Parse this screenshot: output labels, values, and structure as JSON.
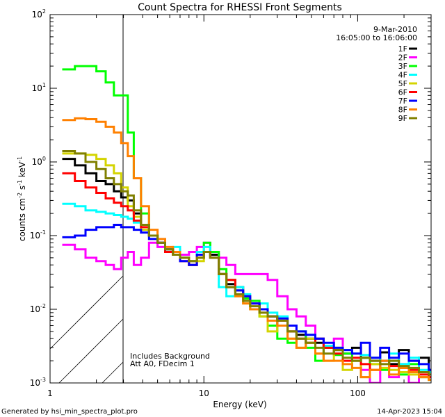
{
  "chart_data": {
    "type": "line",
    "title": "Count Spectra for RHESSI Front Segments",
    "xlabel": "Energy (keV)",
    "ylabel": "counts cm-2 s-1 keV-1",
    "ylabel_parts": {
      "base": "counts cm",
      "e1": "-2",
      "mid1": " s",
      "e2": "-1",
      "mid2": " keV",
      "e3": "-1"
    },
    "xscale": "log",
    "yscale": "log",
    "xlim": [
      1,
      300
    ],
    "ylim": [
      0.001,
      100
    ],
    "x_tick_labels": [
      "1",
      "10",
      "100"
    ],
    "y_tick_labels": [
      {
        "base": "10",
        "exp": "-3"
      },
      {
        "base": "10",
        "exp": "-2"
      },
      {
        "base": "10",
        "exp": "-1"
      },
      {
        "base": "10",
        "exp": "0"
      },
      {
        "base": "10",
        "exp": "1"
      },
      {
        "base": "10",
        "exp": "2"
      }
    ],
    "date": "9-Mar-2010",
    "time_range": "16:05:00 to 16:06:00",
    "annotations": [
      "Includes Background",
      "Att A0, FDecim 1"
    ],
    "shaded_region_keV": [
      1,
      3
    ],
    "legend_placement": "top-right",
    "energy_keV": [
      1.2,
      1.45,
      1.7,
      2.0,
      2.3,
      2.6,
      2.9,
      3.2,
      3.5,
      3.9,
      4.4,
      5,
      5.6,
      6.3,
      7,
      8,
      9,
      10,
      11,
      12.5,
      14,
      16,
      18,
      20,
      23,
      26,
      30,
      35,
      40,
      46,
      53,
      60,
      70,
      80,
      92,
      105,
      120,
      140,
      160,
      185,
      215,
      250,
      290
    ],
    "series": [
      {
        "name": "1F",
        "color": "#000000",
        "values": [
          1.1,
          0.9,
          0.7,
          0.55,
          0.5,
          0.4,
          0.33,
          0.3,
          0.2,
          0.14,
          0.1,
          0.08,
          0.065,
          0.055,
          0.05,
          0.04,
          0.05,
          0.06,
          0.055,
          0.03,
          0.022,
          0.02,
          0.014,
          0.012,
          0.01,
          0.008,
          0.006,
          0.005,
          0.0045,
          0.004,
          0.0035,
          0.003,
          0.0028,
          0.0025,
          0.003,
          0.0022,
          0.002,
          0.0026,
          0.0018,
          0.0028,
          0.002,
          0.0022,
          0.0015
        ]
      },
      {
        "name": "2F",
        "color": "#ff00ff",
        "values": [
          0.075,
          0.065,
          0.05,
          0.045,
          0.04,
          0.035,
          0.05,
          0.06,
          0.04,
          0.05,
          0.08,
          0.07,
          0.06,
          0.06,
          0.055,
          0.06,
          0.07,
          0.08,
          0.06,
          0.05,
          0.04,
          0.03,
          0.03,
          0.03,
          0.03,
          0.025,
          0.015,
          0.01,
          0.008,
          0.006,
          0.004,
          0.003,
          0.004,
          0.0025,
          0.002,
          0.0015,
          0.001,
          0.002,
          0.0012,
          0.0018,
          0.001,
          0.0014,
          0.0012
        ]
      },
      {
        "name": "3F",
        "color": "#00ff00",
        "values": [
          18,
          20,
          20,
          17,
          12,
          8,
          8,
          2.5,
          0.6,
          0.2,
          0.1,
          0.08,
          0.06,
          0.055,
          0.05,
          0.045,
          0.05,
          0.08,
          0.06,
          0.035,
          0.025,
          0.018,
          0.014,
          0.013,
          0.008,
          0.006,
          0.004,
          0.0035,
          0.005,
          0.003,
          0.002,
          0.003,
          0.0024,
          0.0025,
          0.002,
          0.0022,
          0.0018,
          0.0015,
          0.002,
          0.0013,
          0.0018,
          0.0012,
          0.0011
        ]
      },
      {
        "name": "4F",
        "color": "#00ffff",
        "values": [
          0.27,
          0.25,
          0.22,
          0.21,
          0.2,
          0.19,
          0.18,
          0.17,
          0.15,
          0.12,
          0.1,
          0.08,
          0.065,
          0.07,
          0.05,
          0.045,
          0.06,
          0.07,
          0.05,
          0.02,
          0.015,
          0.02,
          0.016,
          0.01,
          0.012,
          0.009,
          0.008,
          0.006,
          0.005,
          0.0045,
          0.004,
          0.0032,
          0.003,
          0.0028,
          0.0025,
          0.0024,
          0.0022,
          0.002,
          0.0025,
          0.0018,
          0.0022,
          0.0015,
          0.0014
        ]
      },
      {
        "name": "5F",
        "color": "#d4d400",
        "values": [
          1.3,
          1.3,
          1.25,
          1.1,
          0.9,
          0.7,
          0.45,
          0.25,
          0.18,
          0.12,
          0.1,
          0.08,
          0.065,
          0.055,
          0.05,
          0.04,
          0.045,
          0.06,
          0.05,
          0.03,
          0.02,
          0.015,
          0.012,
          0.01,
          0.008,
          0.005,
          0.006,
          0.004,
          0.003,
          0.004,
          0.0025,
          0.002,
          0.003,
          0.0015,
          0.002,
          0.0012,
          0.0018,
          0.0016,
          0.0015,
          0.0014,
          0.0013,
          0.0012,
          0.0011
        ]
      },
      {
        "name": "6F",
        "color": "#ff0000",
        "values": [
          0.7,
          0.55,
          0.45,
          0.38,
          0.32,
          0.28,
          0.25,
          0.22,
          0.16,
          0.13,
          0.1,
          0.08,
          0.06,
          0.055,
          0.045,
          0.04,
          0.05,
          0.06,
          0.05,
          0.03,
          0.025,
          0.018,
          0.015,
          0.012,
          0.01,
          0.008,
          0.007,
          0.005,
          0.004,
          0.0035,
          0.004,
          0.003,
          0.0025,
          0.002,
          0.0022,
          0.0018,
          0.0015,
          0.002,
          0.0017,
          0.0016,
          0.0015,
          0.0013,
          0.0012
        ]
      },
      {
        "name": "7F",
        "color": "#0000ff",
        "values": [
          0.095,
          0.1,
          0.12,
          0.13,
          0.13,
          0.14,
          0.13,
          0.13,
          0.12,
          0.11,
          0.09,
          0.08,
          0.065,
          0.06,
          0.045,
          0.04,
          0.055,
          0.06,
          0.05,
          0.03,
          0.02,
          0.018,
          0.015,
          0.012,
          0.01,
          0.008,
          0.0075,
          0.006,
          0.005,
          0.0045,
          0.004,
          0.0035,
          0.003,
          0.0028,
          0.0025,
          0.0035,
          0.0022,
          0.003,
          0.0022,
          0.0025,
          0.002,
          0.0018,
          0.0015
        ]
      },
      {
        "name": "8F",
        "color": "#ff8000",
        "values": [
          3.7,
          3.9,
          3.8,
          3.5,
          3.0,
          2.5,
          1.8,
          1.2,
          0.6,
          0.25,
          0.12,
          0.09,
          0.07,
          0.06,
          0.05,
          0.045,
          0.05,
          0.06,
          0.05,
          0.03,
          0.02,
          0.015,
          0.012,
          0.01,
          0.009,
          0.007,
          0.006,
          0.004,
          0.003,
          0.0035,
          0.0025,
          0.002,
          0.002,
          0.0018,
          0.0016,
          0.0012,
          0.0015,
          0.002,
          0.0013,
          0.0016,
          0.0014,
          0.0012,
          0.0011
        ]
      },
      {
        "name": "9F",
        "color": "#808000",
        "values": [
          1.4,
          1.3,
          1.0,
          0.8,
          0.6,
          0.5,
          0.4,
          0.35,
          0.22,
          0.14,
          0.1,
          0.08,
          0.065,
          0.055,
          0.05,
          0.045,
          0.05,
          0.06,
          0.05,
          0.03,
          0.02,
          0.016,
          0.013,
          0.011,
          0.009,
          0.008,
          0.007,
          0.005,
          0.004,
          0.0035,
          0.003,
          0.0025,
          0.0028,
          0.0022,
          0.002,
          0.0022,
          0.002,
          0.0018,
          0.002,
          0.0017,
          0.0016,
          0.0014,
          0.0013
        ]
      }
    ]
  },
  "footer": {
    "generated_by": "Generated by hsi_min_spectra_plot.pro",
    "timestamp": "14-Apr-2023 15:04"
  }
}
